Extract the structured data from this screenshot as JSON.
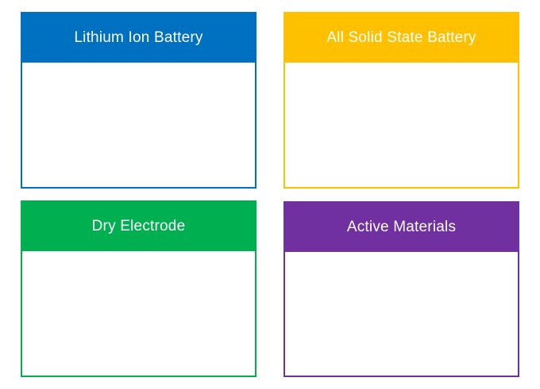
{
  "cards": [
    {
      "title": "Lithium Ion Battery",
      "color": "#0070C0"
    },
    {
      "title": "All Solid State Battery",
      "color": "#FFC000"
    },
    {
      "title": "Dry Electrode",
      "color": "#00B050"
    },
    {
      "title": "Active Materials",
      "color": "#7030A0"
    }
  ]
}
